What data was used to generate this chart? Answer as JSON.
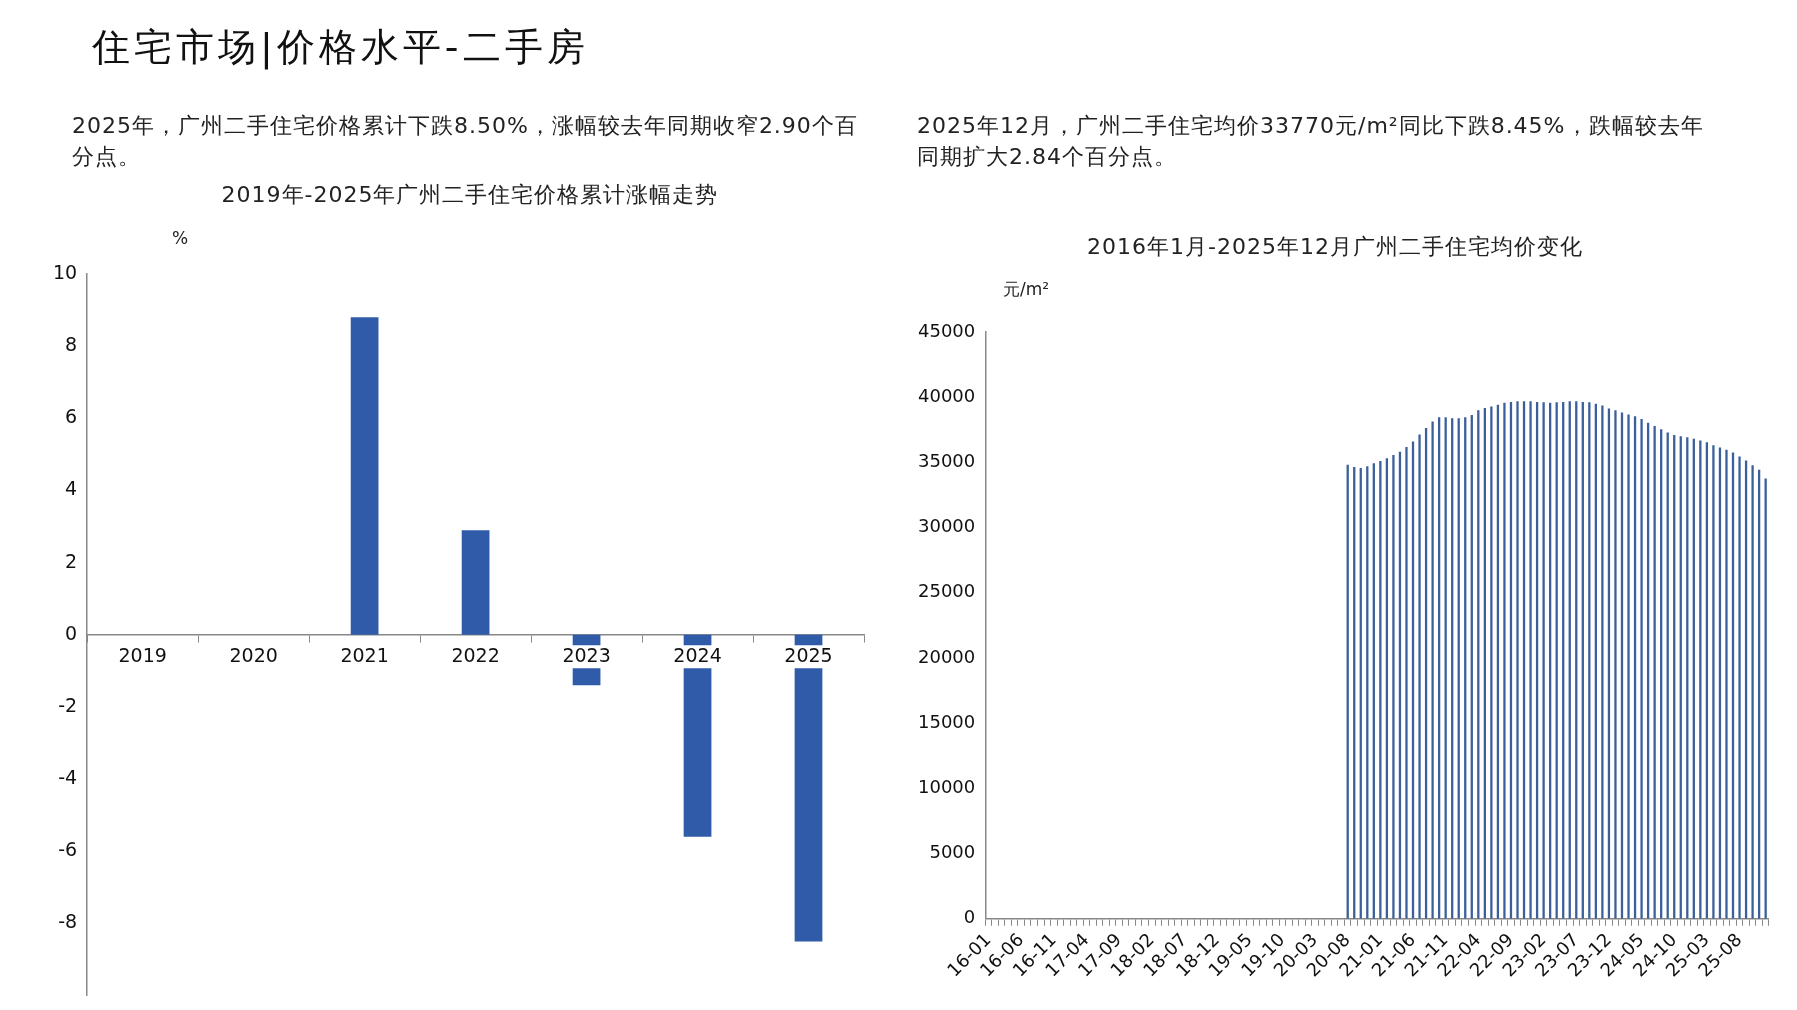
{
  "chart_data": [
    {
      "type": "bar",
      "title": "2019年-2025年广州二手住宅价格累计涨幅走势",
      "ylabel": "%",
      "annotations": [
        "住宅市场|价格水平-二手房",
        "2025年，广州二手住宅价格累计下跌8.50%，涨幅较去年同期收窄2.90个百分点。"
      ],
      "categories": [
        "2019",
        "2020",
        "2021",
        "2022",
        "2023",
        "2024",
        "2025"
      ],
      "values": [
        null,
        null,
        8.8,
        2.9,
        -1.4,
        -5.6,
        -8.5
      ],
      "color": "#2f5ba8",
      "ylim": [
        -10,
        10
      ],
      "yticks": [
        -8,
        -6,
        -4,
        -2,
        0,
        2,
        4,
        6,
        8,
        10
      ]
    },
    {
      "type": "bar",
      "title": "2016年1月-2025年12月广州二手住宅均价变化",
      "ylabel": "元/m²",
      "annotations": [
        "2025年12月，广州二手住宅均价33770元/m²同比下跌8.45%，跌幅较去年同期扩大2.84个百分点。"
      ],
      "categories": [
        "16-01",
        null,
        null,
        null,
        null,
        "16-06",
        null,
        null,
        null,
        null,
        "16-11",
        null,
        null,
        null,
        null,
        "17-04",
        null,
        null,
        null,
        null,
        "17-09",
        null,
        null,
        null,
        null,
        "18-02",
        null,
        null,
        null,
        null,
        "18-07",
        null,
        null,
        null,
        null,
        "18-12",
        null,
        null,
        null,
        null,
        "19-05",
        null,
        null,
        null,
        null,
        "19-10",
        null,
        null,
        null,
        null,
        "20-03",
        null,
        null,
        null,
        null,
        "20-08",
        null,
        null,
        null,
        null,
        "21-01",
        null,
        null,
        null,
        null,
        "21-06",
        null,
        null,
        null,
        null,
        "21-11",
        null,
        null,
        null,
        null,
        "22-04",
        null,
        null,
        null,
        null,
        "22-09",
        null,
        null,
        null,
        null,
        "23-02",
        null,
        null,
        null,
        null,
        "23-07",
        null,
        null,
        null,
        null,
        "23-12",
        null,
        null,
        null,
        null,
        "24-05",
        null,
        null,
        null,
        null,
        "24-10",
        null,
        null,
        null,
        null,
        "25-03",
        null,
        null,
        null,
        null,
        "25-08",
        null,
        null,
        null,
        null
      ],
      "values": [
        null,
        null,
        null,
        null,
        null,
        null,
        null,
        null,
        null,
        null,
        null,
        null,
        null,
        null,
        null,
        null,
        null,
        null,
        null,
        null,
        null,
        null,
        null,
        null,
        null,
        null,
        null,
        null,
        null,
        null,
        null,
        null,
        null,
        null,
        null,
        null,
        null,
        null,
        null,
        null,
        null,
        null,
        null,
        null,
        null,
        null,
        null,
        null,
        null,
        null,
        null,
        null,
        null,
        null,
        null,
        34820,
        34640,
        34570,
        34710,
        34930,
        35110,
        35320,
        35570,
        35820,
        36180,
        36610,
        37140,
        37640,
        38140,
        38460,
        38460,
        38390,
        38390,
        38460,
        38640,
        39000,
        39180,
        39290,
        39430,
        39570,
        39640,
        39680,
        39680,
        39680,
        39640,
        39610,
        39570,
        39610,
        39640,
        39680,
        39680,
        39640,
        39610,
        39500,
        39360,
        39140,
        39000,
        38820,
        38680,
        38540,
        38320,
        38040,
        37790,
        37540,
        37290,
        37110,
        37000,
        36930,
        36820,
        36680,
        36540,
        36320,
        36140,
        35960,
        35750,
        35460,
        35140,
        34790,
        34430,
        33770
      ],
      "color": "#3a5f9a",
      "ylim": [
        0,
        45000
      ],
      "yticks": [
        0,
        5000,
        10000,
        15000,
        20000,
        25000,
        30000,
        35000,
        40000,
        45000
      ]
    }
  ]
}
